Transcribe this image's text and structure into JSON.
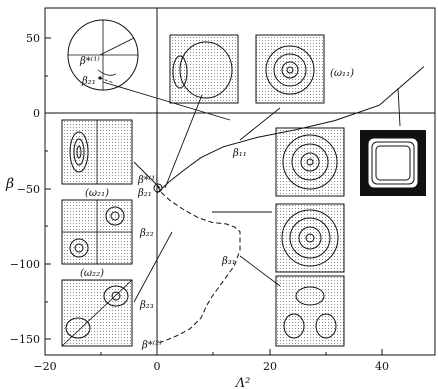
{
  "figure": {
    "axes": {
      "xlabel": "Λ²",
      "ylabel": "β"
    },
    "xticks": [
      "−20",
      "0",
      "20",
      "40"
    ],
    "yticks": [
      "50",
      "0",
      "−50",
      "−100",
      "−150"
    ],
    "labels": {
      "beta1_inset": "β*⁽¹⁾",
      "beta21_inset": "β₂₁",
      "omega11": "(ω₁₁)",
      "omega21": "(ω₂₁)",
      "omega22": "(ω₂₂)",
      "beta11": "β₁₁",
      "beta1_main": "β*⁽¹⁾",
      "beta21_main": "β₂₁",
      "beta22": "β₂₂",
      "beta31": "β₃₁",
      "beta23": "β₂₃",
      "beta2": "β*⁽²⁾"
    }
  },
  "chart_data": {
    "type": "line",
    "xlabel": "Λ²",
    "ylabel": "β",
    "xlim": [
      -20,
      50
    ],
    "ylim": [
      -160,
      65
    ],
    "xticks": [
      -20,
      0,
      20,
      40
    ],
    "yticks": [
      50,
      0,
      -50,
      -100,
      -150
    ],
    "series": [
      {
        "style": "solid",
        "x": [
          0.1,
          1,
          2.5,
          5,
          8,
          12,
          18,
          25,
          32,
          40,
          48
        ],
        "y": [
          -55,
          -52,
          -47,
          -40,
          -32,
          -25,
          -19,
          -14,
          -8,
          2,
          27
        ]
      },
      {
        "style": "dashed",
        "x": [
          0.1,
          1,
          2.5,
          5,
          7.5,
          10,
          12.5,
          14,
          15,
          15,
          14,
          12,
          10,
          9,
          8,
          6,
          4,
          2,
          0.5
        ],
        "y": [
          -50,
          -55,
          -60,
          -66,
          -71,
          -74,
          -75,
          -77,
          -80,
          -92,
          -102,
          -112,
          -122,
          -128,
          -136,
          -143,
          -147,
          -150,
          -152
        ]
      }
    ],
    "annotations": [
      {
        "text": "β₁₁",
        "x": 12,
        "y": -22
      },
      {
        "text": "β*⁽¹⁾",
        "x": 0.1,
        "y": -50
      },
      {
        "text": "β₂₁",
        "x": 0.1,
        "y": -54
      },
      {
        "text": "β₂₂",
        "x": 0.1,
        "y": -77
      },
      {
        "text": "β₃₁",
        "x": 14,
        "y": -100
      },
      {
        "text": "β₂₃",
        "x": 0.1,
        "y": -130
      },
      {
        "text": "β*⁽²⁾",
        "x": 0.5,
        "y": -152
      }
    ]
  }
}
